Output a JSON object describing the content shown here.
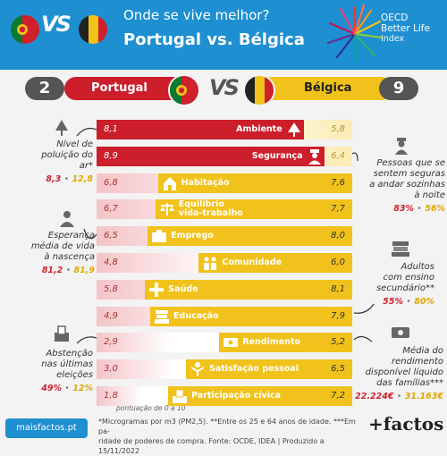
{
  "header": {
    "title_top": "Onde se vive melhor?",
    "title_main": "Portugal vs. Bélgica",
    "vs": "VS",
    "oecd": [
      "OECD",
      "Better Life",
      "Index"
    ]
  },
  "scores": {
    "pt_name": "Portugal",
    "pt_score": "2",
    "be_name": "Bélgica",
    "be_score": "9",
    "vs": "VS"
  },
  "colors": {
    "portugal": "#cc1f2b",
    "portugal_light": "#f4c4c8",
    "belgica": "#f1c21b",
    "belgica_light": "#fbecb4"
  },
  "chart_data": {
    "type": "bar",
    "scale": [
      0,
      10
    ],
    "categories": [
      "Ambiente",
      "Segurança",
      "Habitação",
      "Equilíbrio vida-trabalho",
      "Emprego",
      "Comunidade",
      "Saúde",
      "Educação",
      "Rendimento",
      "Satisfação pessoal",
      "Participação cívica"
    ],
    "category_labels": [
      [
        "Ambiente"
      ],
      [
        "Segurança"
      ],
      [
        "Habitação"
      ],
      [
        "Equilíbrio",
        "vida-trabalho"
      ],
      [
        "Emprego"
      ],
      [
        "Comunidade"
      ],
      [
        "Saúde"
      ],
      [
        "Educação"
      ],
      [
        "Rendimento"
      ],
      [
        "Satisfação pessoal"
      ],
      [
        "Participação cívica"
      ]
    ],
    "icons": [
      "tree-icon",
      "police-icon",
      "house-icon",
      "balance-icon",
      "briefcase-icon",
      "people-icon",
      "health-icon",
      "books-icon",
      "money-icon",
      "happy-person-icon",
      "ballot-icon"
    ],
    "series": [
      {
        "name": "Portugal",
        "values": [
          "8,1",
          "8,9",
          "6,8",
          "6,7",
          "6,5",
          "4,8",
          "5,8",
          "4,9",
          "2,9",
          "3,0",
          "1,8"
        ]
      },
      {
        "name": "Bélgica",
        "values": [
          "5,8",
          "6,4",
          "7,6",
          "7,7",
          "8,0",
          "6,0",
          "8,1",
          "7,9",
          "5,2",
          "6,5",
          "7,2"
        ]
      }
    ],
    "winner": [
      "pt",
      "pt",
      "be",
      "be",
      "be",
      "be",
      "be",
      "be",
      "be",
      "be",
      "be"
    ]
  },
  "notes": {
    "poluicao": {
      "lines": [
        "Nível de",
        "poluição do ar*"
      ],
      "pt": "8,3",
      "be": "12,8"
    },
    "esperanca": {
      "lines": [
        "Esperança",
        "média de vida",
        "à nascença"
      ],
      "pt": "81,2",
      "be": "81,9"
    },
    "abstencao": {
      "lines": [
        "Abstenção",
        "nas últimas",
        "eleições"
      ],
      "pt": "49%",
      "be": "12%"
    },
    "seguras": {
      "lines": [
        "Pessoas que se",
        "sentem seguras",
        "a andar sozinhas",
        "à noite"
      ],
      "pt": "83%",
      "be": "56%"
    },
    "ensino": {
      "lines": [
        "Adultos",
        "com ensino",
        "secundário**"
      ],
      "pt": "55%",
      "be": "80%"
    },
    "rendimento": {
      "lines": [
        "Média do",
        "rendimento",
        "disponível líquido",
        "das famílias***"
      ],
      "pt": "22.224€",
      "be": "31.163€"
    },
    "sep": "•"
  },
  "footer": {
    "scale_note": "pontuação de 0 a 10",
    "footnote_1": "*Microgramas por m3 (PM2,5). **Entre os 25 e 64 anos de idade. ***Em pa-",
    "footnote_2": "ridade de poderes de compra. Fonte: OCDE, IDEA | Produzido a 15/11/2022",
    "site": "maisfactos.pt",
    "brand": "+factos"
  }
}
